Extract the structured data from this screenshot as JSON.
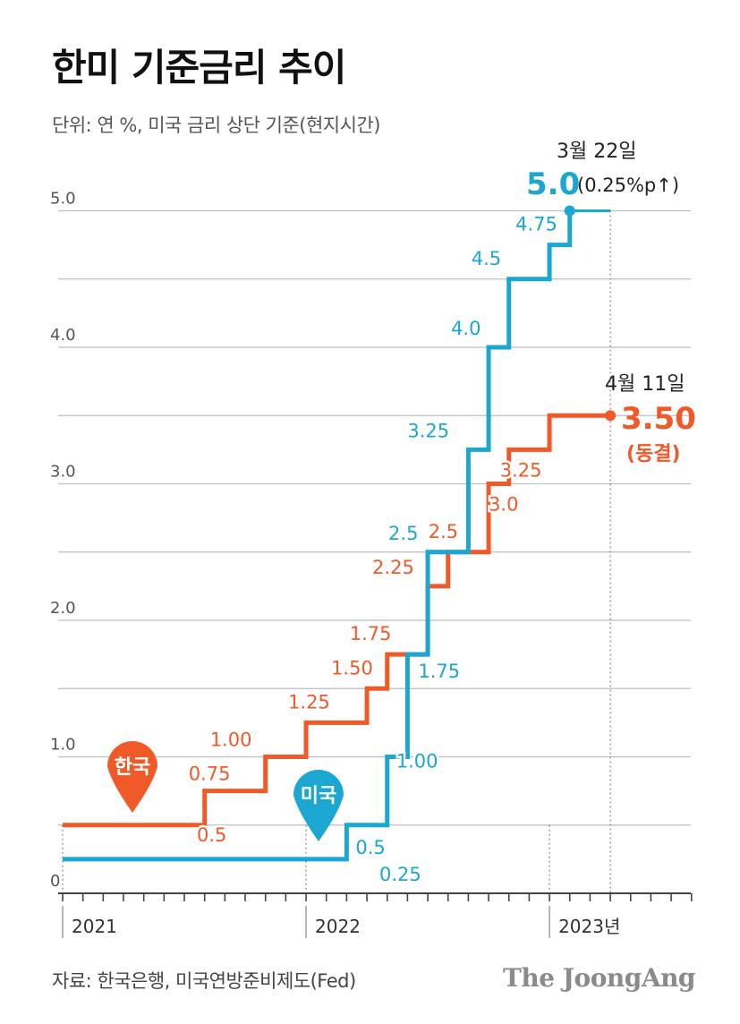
{
  "title": "한미 기준금리 추이",
  "subtitle": "단위: 연 %, 미국 금리 상단 기준(현지시간)",
  "source": "자료: 한국은행, 미국연방준비제도(Fed)",
  "brand": "The JoongAng",
  "colors": {
    "us": "#1ba7d1",
    "korea": "#f05a28",
    "grid": "#b8bfc6",
    "axis": "#444444",
    "label": "#555555"
  },
  "chart_data": {
    "type": "line",
    "step": true,
    "ylim": [
      0,
      5.5
    ],
    "y_ticks": [
      {
        "value": 0,
        "label": "0"
      },
      {
        "value": 1,
        "label": "1.0"
      },
      {
        "value": 2,
        "label": "2.0"
      },
      {
        "value": 3,
        "label": "3.0"
      },
      {
        "value": 4,
        "label": "4.0"
      },
      {
        "value": 5,
        "label": "5.0"
      }
    ],
    "x_ticks": [
      {
        "value": 0,
        "label": "2021"
      },
      {
        "value": 12,
        "label": "2022"
      },
      {
        "value": 24,
        "label": "2023년"
      }
    ],
    "xlim": [
      0,
      31
    ],
    "x_unit": "months since Jan 2021",
    "series": [
      {
        "name": "한국",
        "color": "#f05a28",
        "points": [
          {
            "x": 0,
            "y": 0.5,
            "label": "0.5"
          },
          {
            "x": 7,
            "y": 0.75,
            "label": "0.75"
          },
          {
            "x": 10,
            "y": 1.0,
            "label": "1.00"
          },
          {
            "x": 12,
            "y": 1.25,
            "label": "1.25"
          },
          {
            "x": 15,
            "y": 1.5,
            "label": "1.50"
          },
          {
            "x": 16,
            "y": 1.75,
            "label": "1.75"
          },
          {
            "x": 18,
            "y": 2.25,
            "label": "2.25"
          },
          {
            "x": 19,
            "y": 2.5,
            "label": "2.5"
          },
          {
            "x": 21,
            "y": 3.0,
            "label": "3.0"
          },
          {
            "x": 22,
            "y": 3.25,
            "label": "3.25"
          },
          {
            "x": 24,
            "y": 3.5,
            "label": ""
          }
        ],
        "end_x": 27
      },
      {
        "name": "미국",
        "color": "#1ba7d1",
        "points": [
          {
            "x": 0,
            "y": 0.25,
            "label": "0.25"
          },
          {
            "x": 14,
            "y": 0.5,
            "label": "0.5"
          },
          {
            "x": 16,
            "y": 1.0,
            "label": "1.00"
          },
          {
            "x": 17,
            "y": 1.75,
            "label": "1.75"
          },
          {
            "x": 18,
            "y": 2.5,
            "label": "2.5"
          },
          {
            "x": 20,
            "y": 3.25,
            "label": "3.25"
          },
          {
            "x": 21,
            "y": 4.0,
            "label": "4.0"
          },
          {
            "x": 22,
            "y": 4.5,
            "label": "4.5"
          },
          {
            "x": 24,
            "y": 4.75,
            "label": "4.75"
          },
          {
            "x": 25,
            "y": 5.0,
            "label": ""
          }
        ],
        "end_x": 27
      }
    ],
    "badges": {
      "korea": "한국",
      "us": "미국"
    },
    "annotations": {
      "us": {
        "date": "3월 22일",
        "value": "5.0",
        "note": "(0.25%p↑)",
        "x": 25,
        "y": 5.0
      },
      "korea": {
        "date": "4월 11일",
        "value": "3.50",
        "note": "(동결)",
        "x": 27,
        "y": 3.5
      }
    }
  }
}
